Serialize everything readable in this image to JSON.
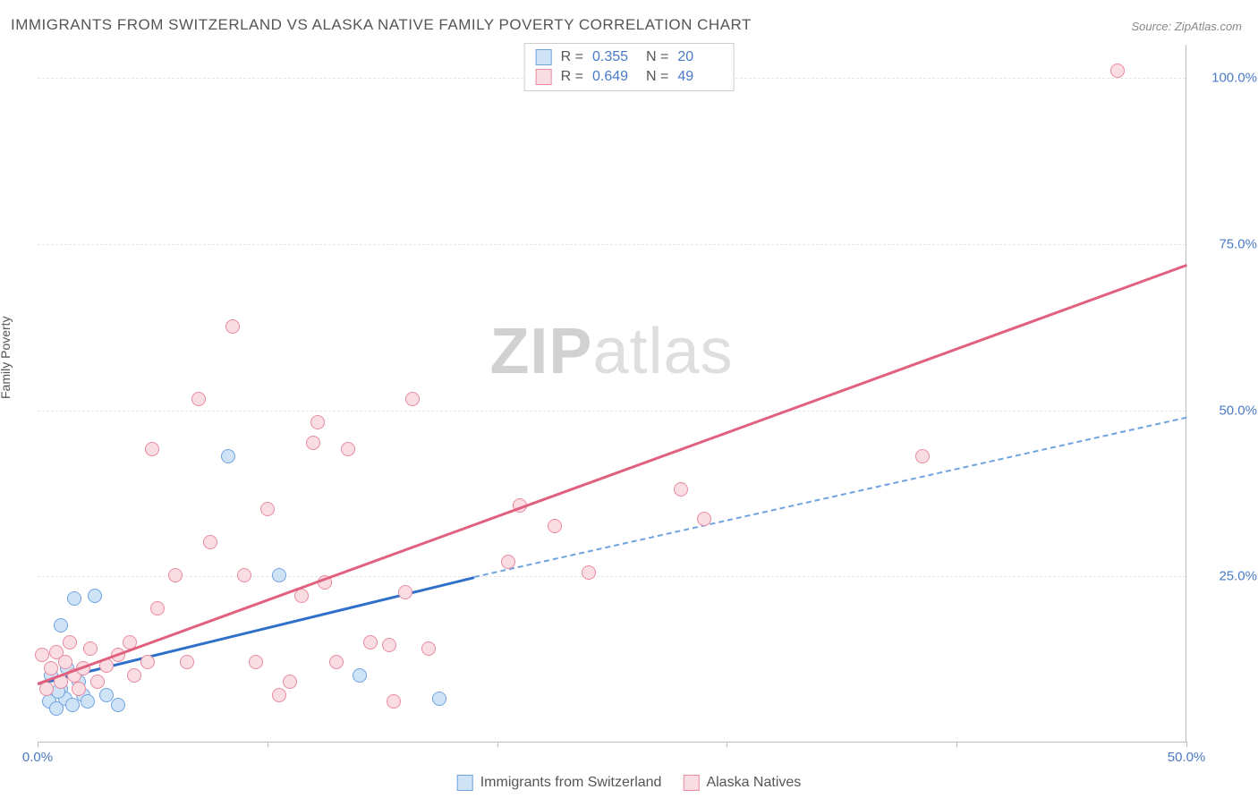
{
  "title": "IMMIGRANTS FROM SWITZERLAND VS ALASKA NATIVE FAMILY POVERTY CORRELATION CHART",
  "source": "Source: ZipAtlas.com",
  "ylabel": "Family Poverty",
  "watermark_bold": "ZIP",
  "watermark_light": "atlas",
  "chart": {
    "type": "scatter",
    "xlim": [
      0,
      50
    ],
    "ylim": [
      0,
      105
    ],
    "x_ticks": [
      0,
      10,
      20,
      30,
      40,
      50
    ],
    "x_tick_labels": [
      "0.0%",
      "",
      "",
      "",
      "",
      "50.0%"
    ],
    "y_ticks": [
      25,
      50,
      75,
      100
    ],
    "y_tick_labels": [
      "25.0%",
      "50.0%",
      "75.0%",
      "100.0%"
    ],
    "gridlines_y": [
      25,
      50,
      75,
      100
    ],
    "background_color": "#ffffff",
    "grid_color": "#e5e5e5",
    "axis_label_color": "#4a7ac7",
    "marker_radius": 8,
    "series": [
      {
        "name": "Immigrants from Switzerland",
        "color_fill": "#cfe3f7",
        "color_stroke": "#6fa3e0",
        "R": "0.355",
        "N": "20",
        "trend": {
          "x0": 0,
          "y0": 9,
          "x1": 19,
          "y1": 25,
          "color": "#2e6fc9",
          "width": 2.5,
          "dash_x0": 19,
          "dash_y0": 25,
          "dash_x1": 50,
          "dash_y1": 49,
          "dash_color": "#6fa3e0"
        },
        "points": [
          [
            0.5,
            6
          ],
          [
            0.8,
            5
          ],
          [
            1.0,
            8
          ],
          [
            1.2,
            6.5
          ],
          [
            1.5,
            5.5
          ],
          [
            2.0,
            7
          ],
          [
            1.8,
            9
          ],
          [
            2.2,
            6
          ],
          [
            1.0,
            17.5
          ],
          [
            1.6,
            21.5
          ],
          [
            2.5,
            22
          ],
          [
            3.0,
            7
          ],
          [
            3.5,
            5.5
          ],
          [
            8.3,
            43
          ],
          [
            10.5,
            25
          ],
          [
            14.0,
            10
          ],
          [
            17.5,
            6.5
          ],
          [
            0.6,
            10
          ],
          [
            1.3,
            11
          ],
          [
            0.9,
            7.5
          ]
        ]
      },
      {
        "name": "Alaska Natives",
        "color_fill": "#fadce3",
        "color_stroke": "#e88aa0",
        "R": "0.649",
        "N": "49",
        "trend": {
          "x0": 0,
          "y0": 9,
          "x1": 50,
          "y1": 72,
          "color": "#e0607d",
          "width": 2.5
        },
        "points": [
          [
            0.2,
            13
          ],
          [
            0.4,
            8
          ],
          [
            0.6,
            11
          ],
          [
            0.8,
            13.5
          ],
          [
            1.0,
            9
          ],
          [
            1.2,
            12
          ],
          [
            1.4,
            15
          ],
          [
            1.6,
            10
          ],
          [
            1.8,
            8
          ],
          [
            2.0,
            11
          ],
          [
            2.3,
            14
          ],
          [
            2.6,
            9
          ],
          [
            3.0,
            11.5
          ],
          [
            3.5,
            13
          ],
          [
            4.0,
            15
          ],
          [
            4.2,
            10
          ],
          [
            4.8,
            12
          ],
          [
            5.0,
            44
          ],
          [
            5.2,
            20
          ],
          [
            6.0,
            25
          ],
          [
            6.5,
            12
          ],
          [
            7.0,
            51.5
          ],
          [
            7.5,
            30
          ],
          [
            8.5,
            62.5
          ],
          [
            9.0,
            25
          ],
          [
            9.5,
            12
          ],
          [
            10.0,
            35
          ],
          [
            10.5,
            7
          ],
          [
            11.0,
            9
          ],
          [
            11.5,
            22
          ],
          [
            12.0,
            45
          ],
          [
            12.2,
            48
          ],
          [
            12.5,
            24
          ],
          [
            13.0,
            12
          ],
          [
            13.5,
            44
          ],
          [
            14.5,
            15
          ],
          [
            15.3,
            14.5
          ],
          [
            15.5,
            6
          ],
          [
            16.0,
            22.5
          ],
          [
            16.3,
            51.5
          ],
          [
            17.0,
            14
          ],
          [
            20.5,
            27
          ],
          [
            21.0,
            35.5
          ],
          [
            22.5,
            32.5
          ],
          [
            24.0,
            25.5
          ],
          [
            28.0,
            38
          ],
          [
            29.0,
            33.5
          ],
          [
            38.5,
            43
          ],
          [
            47.0,
            101
          ]
        ]
      }
    ]
  },
  "legend_bottom": [
    {
      "label": "Immigrants from Switzerland",
      "fill": "#cfe3f7",
      "stroke": "#6fa3e0"
    },
    {
      "label": "Alaska Natives",
      "fill": "#fadce3",
      "stroke": "#e88aa0"
    }
  ]
}
